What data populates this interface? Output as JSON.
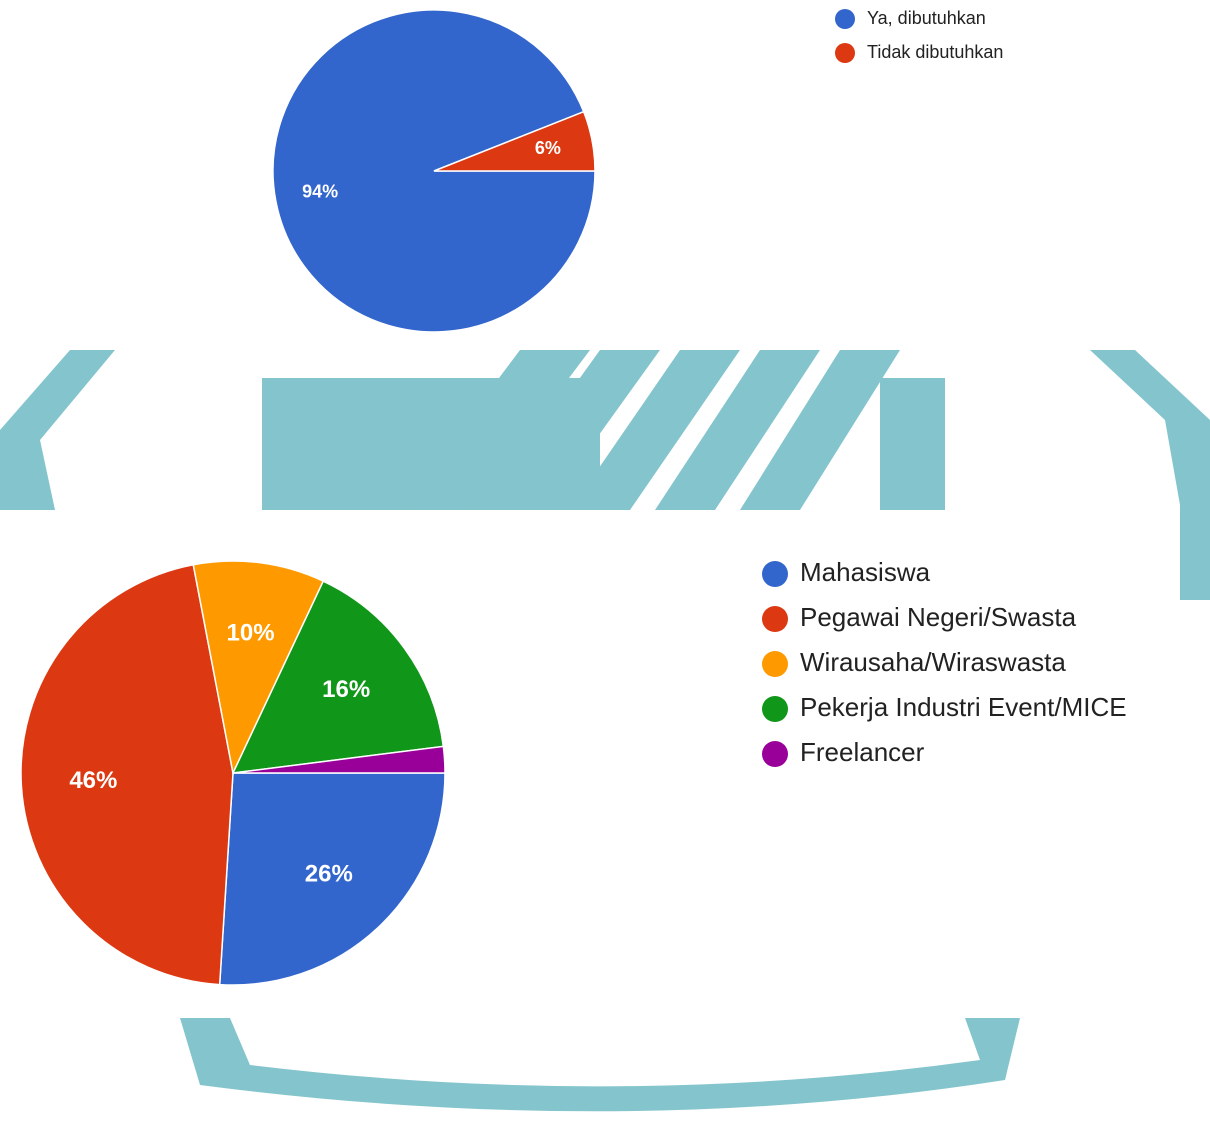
{
  "colors": {
    "watermark": "#84c5cd",
    "blue": "#3366cc",
    "red": "#dc3912",
    "orange": "#ff9900",
    "green": "#109618",
    "purple": "#990099"
  },
  "chart_data": [
    {
      "type": "pie",
      "title": "",
      "slices": [
        {
          "label": "Ya, dibutuhkan",
          "value": 94,
          "display": "94%",
          "color": "#3366cc"
        },
        {
          "label": "Tidak dibutuhkan",
          "value": 6,
          "display": "6%",
          "color": "#dc3912"
        }
      ],
      "legend": {
        "position": "top-right"
      }
    },
    {
      "type": "pie",
      "title": "",
      "slices": [
        {
          "label": "Mahasiswa",
          "value": 26,
          "display": "26%",
          "color": "#3366cc"
        },
        {
          "label": "Pegawai Negeri/Swasta",
          "value": 46,
          "display": "46%",
          "color": "#dc3912"
        },
        {
          "label": "Wirausaha/Wiraswasta",
          "value": 10,
          "display": "10%",
          "color": "#ff9900"
        },
        {
          "label": "Pekerja Industri Event/MICE",
          "value": 16,
          "display": "16%",
          "color": "#109618"
        },
        {
          "label": "Freelancer",
          "value": 2,
          "display": "",
          "color": "#990099"
        }
      ],
      "legend": {
        "position": "right"
      }
    }
  ]
}
